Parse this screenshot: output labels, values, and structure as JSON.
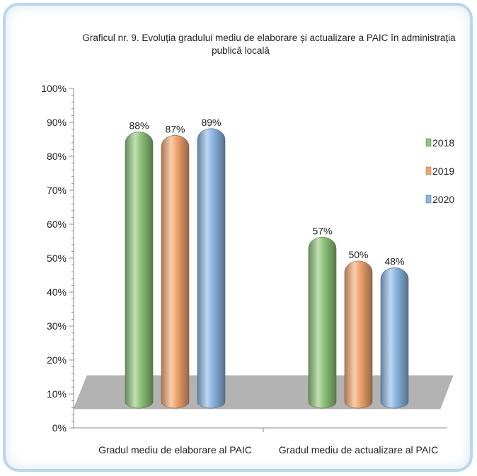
{
  "chart_data": {
    "type": "bar",
    "title_line1": "Graficul nr. 9. Evoluția gradului  mediu de elaborare și actualizare a PAIC în administrația",
    "title_line2": "publică locală",
    "categories": [
      "Gradul mediu de elaborare al PAIC",
      "Gradul mediu de actualizare al PAIC"
    ],
    "series": [
      {
        "name": "2018",
        "values": [
          88,
          57
        ],
        "labels": [
          "88%",
          "57%"
        ],
        "color": "#8fc47a"
      },
      {
        "name": "2019",
        "values": [
          87,
          50
        ],
        "labels": [
          "87%",
          "50%"
        ],
        "color": "#f0a56f"
      },
      {
        "name": "2020",
        "values": [
          89,
          48
        ],
        "labels": [
          "89%",
          "48%"
        ],
        "color": "#8ab6e2"
      }
    ],
    "yticks": [
      "0%",
      "10%",
      "20%",
      "30%",
      "40%",
      "50%",
      "60%",
      "70%",
      "80%",
      "90%",
      "100%"
    ],
    "ylim": [
      0,
      100
    ],
    "legend_position": "right",
    "floor_color": "#b3b3b3",
    "grid": false
  }
}
